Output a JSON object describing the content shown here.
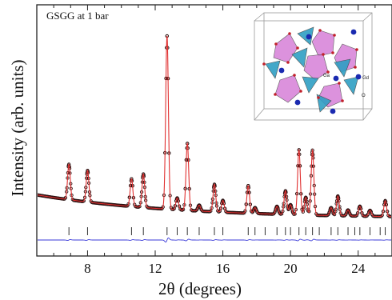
{
  "chart_data": {
    "type": "line",
    "panel_label": "GSGG at 1 bar",
    "xlabel": "2θ (degrees)",
    "ylabel": "Intensity (arb. units)",
    "xlim": [
      5,
      26
    ],
    "x_ticks": [
      8,
      12,
      16,
      20,
      24
    ],
    "x_tick_labels": [
      "8",
      "12",
      "16",
      "20",
      "24"
    ],
    "y_ticks_shown": false,
    "background": {
      "start": 0.12,
      "decay_per_degree": 0.055,
      "floor": 0.02
    },
    "peak_width_deg": 0.08,
    "peaks": [
      {
        "x": 6.9,
        "y": 0.18
      },
      {
        "x": 8.0,
        "y": 0.16
      },
      {
        "x": 10.6,
        "y": 0.14
      },
      {
        "x": 11.3,
        "y": 0.17
      },
      {
        "x": 12.7,
        "y": 0.88
      },
      {
        "x": 13.3,
        "y": 0.06
      },
      {
        "x": 13.9,
        "y": 0.34
      },
      {
        "x": 14.6,
        "y": 0.03
      },
      {
        "x": 15.5,
        "y": 0.14
      },
      {
        "x": 16.0,
        "y": 0.06
      },
      {
        "x": 17.5,
        "y": 0.14
      },
      {
        "x": 17.9,
        "y": 0.03
      },
      {
        "x": 19.2,
        "y": 0.04
      },
      {
        "x": 19.7,
        "y": 0.12
      },
      {
        "x": 20.0,
        "y": 0.05
      },
      {
        "x": 20.5,
        "y": 0.33
      },
      {
        "x": 20.9,
        "y": 0.09
      },
      {
        "x": 21.3,
        "y": 0.33
      },
      {
        "x": 22.4,
        "y": 0.04
      },
      {
        "x": 22.8,
        "y": 0.1
      },
      {
        "x": 23.4,
        "y": 0.03
      },
      {
        "x": 24.1,
        "y": 0.05
      },
      {
        "x": 24.7,
        "y": 0.03
      },
      {
        "x": 25.6,
        "y": 0.08
      }
    ],
    "bragg_reflections": [
      6.9,
      8.0,
      10.6,
      11.3,
      12.7,
      13.3,
      13.9,
      14.6,
      15.5,
      16.0,
      17.5,
      17.9,
      18.5,
      19.2,
      19.7,
      20.0,
      20.5,
      20.9,
      21.3,
      21.7,
      22.4,
      22.8,
      23.4,
      23.8,
      24.1,
      24.7,
      25.3,
      25.6
    ],
    "series": [
      {
        "role": "observed",
        "marker": "open-circle",
        "color": "#2a0f0f"
      },
      {
        "role": "calculated",
        "marker": "line",
        "color": "#e03030"
      },
      {
        "role": "difference",
        "marker": "line",
        "color": "#3a3ad8"
      },
      {
        "role": "bragg-ticks",
        "marker": "vertical-tick",
        "color": "#333333"
      }
    ],
    "inset": {
      "type": "crystal-structure-image",
      "labels": [
        "Gd",
        "Ga",
        "O"
      ],
      "colors": {
        "polyhedra_teal": "#2f9fc4",
        "polyhedra_pink": "#d77fd8",
        "gd_atom": "#1a2ab0",
        "o_atom": "#c2202a",
        "cell_edge": "#999999"
      }
    }
  }
}
